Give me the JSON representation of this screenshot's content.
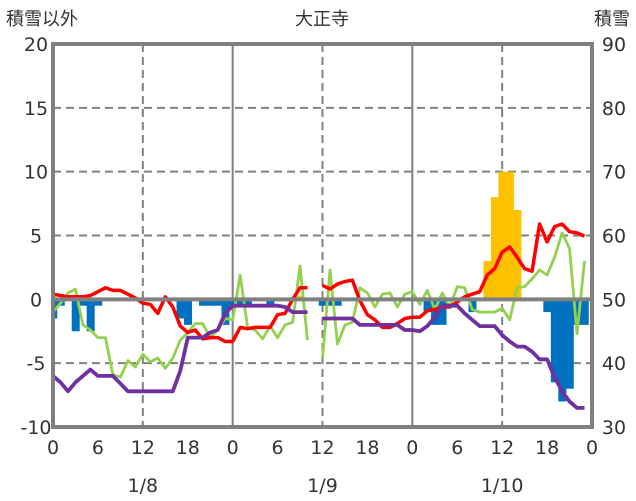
{
  "chart_data": {
    "type": "line",
    "title": "大正寺",
    "ylabel_left": "積雪以外",
    "ylabel_right": "積雪",
    "ylim_left": [
      -10,
      20
    ],
    "ylim_right": [
      30,
      90
    ],
    "yticks_left": [
      "20",
      "15",
      "10",
      "5",
      "0",
      "-5",
      "-10"
    ],
    "yticks_right": [
      "90",
      "80",
      "70",
      "60",
      "50",
      "40",
      "30"
    ],
    "xticks": [
      "0",
      "6",
      "12",
      "18",
      "0",
      "6",
      "12",
      "18",
      "0",
      "6",
      "12",
      "18",
      "0"
    ],
    "date_labels": [
      "1/8",
      "1/9",
      "1/10"
    ],
    "hours": 72,
    "grid": true,
    "colors": {
      "red": "#FF0000",
      "green": "#92D050",
      "purple": "#7030A0",
      "bar_negative": "#0070C0",
      "bar_positive": "#FFC000",
      "axis": "#808080"
    },
    "series": [
      {
        "name": "red",
        "axis": "left",
        "values": [
          0.4,
          0.3,
          0.2,
          0.2,
          0.2,
          0.3,
          0.6,
          0.9,
          0.7,
          0.7,
          0.4,
          0.1,
          -0.3,
          -0.4,
          -1.1,
          0.2,
          -0.6,
          -2.1,
          -2.6,
          -2.4,
          -3.1,
          -3.0,
          -3.0,
          -3.3,
          -3.3,
          -2.2,
          -2.3,
          -2.2,
          -2.2,
          -2.2,
          -1.2,
          -1.1,
          0.0,
          0.9,
          0.9,
          null,
          1.1,
          0.8,
          1.2,
          1.4,
          1.5,
          -0.1,
          -1.2,
          -1.6,
          -2.2,
          -2.2,
          -1.9,
          -1.5,
          -1.4,
          -1.4,
          -0.9,
          -0.8,
          -0.6,
          -0.6,
          -0.2,
          0.2,
          0.4,
          0.6,
          1.9,
          2.4,
          3.7,
          4.1,
          3.3,
          2.4,
          2.2,
          5.9,
          4.5,
          5.7,
          5.9,
          5.3,
          5.2,
          4.95
        ]
      },
      {
        "name": "green",
        "axis": "left",
        "values": [
          -1.0,
          -0.3,
          0.5,
          0.8,
          -2.0,
          -2.4,
          -3.0,
          -3.0,
          -5.9,
          -6.1,
          -4.8,
          -5.3,
          -4.3,
          -4.9,
          -4.6,
          -5.4,
          -4.6,
          -3.2,
          -2.6,
          -1.9,
          -1.9,
          -3.0,
          -2.4,
          -1.5,
          -1.6,
          1.9,
          -2.2,
          -2.4,
          -3.1,
          -2.1,
          -3.0,
          -2.0,
          -1.8,
          2.6,
          -3.2,
          null,
          -4.6,
          2.3,
          -3.5,
          -2.0,
          -1.8,
          0.9,
          0.5,
          -0.6,
          0.4,
          0.5,
          -0.6,
          0.4,
          0.6,
          -0.4,
          0.7,
          -0.8,
          0.5,
          -0.6,
          1.0,
          0.9,
          -0.8,
          -1.0,
          -1.0,
          -1.0,
          -0.7,
          -1.6,
          0.9,
          1.0,
          1.6,
          2.3,
          1.9,
          3.3,
          5.2,
          4.0,
          -2.7,
          3.0
        ]
      },
      {
        "name": "purple",
        "axis": "right",
        "values": [
          38,
          37,
          35.6,
          37,
          38,
          39,
          38,
          38,
          38,
          36.8,
          35.6,
          35.6,
          35.6,
          35.6,
          35.6,
          35.6,
          35.6,
          38.8,
          44,
          44,
          44,
          44.8,
          45.2,
          47.8,
          49,
          49,
          49,
          49,
          49,
          49,
          49,
          48.8,
          48,
          48,
          48,
          null,
          47,
          47,
          47,
          47,
          47,
          46,
          46,
          46,
          46,
          46,
          46,
          45.2,
          45.2,
          45,
          45.8,
          47.2,
          49,
          49,
          49,
          47.8,
          46.8,
          45.8,
          45.8,
          45.8,
          44.4,
          43.4,
          42.6,
          42.6,
          41.8,
          40.6,
          40.6,
          37.8,
          35.6,
          34,
          33,
          33
        ]
      },
      {
        "name": "bars",
        "type": "bar",
        "axis": "left",
        "values": [
          -1.5,
          -0.5,
          0,
          -2.5,
          -0.5,
          -2.5,
          -0.5,
          0,
          0,
          0,
          0,
          0,
          0,
          0,
          0,
          0,
          0,
          -1.5,
          -2.0,
          0,
          -0.5,
          -0.5,
          -0.5,
          -2.0,
          -0.5,
          -0.5,
          -0.5,
          0,
          0,
          -0.5,
          0,
          0,
          0,
          0.3,
          0,
          0,
          -0.5,
          -0.5,
          -0.5,
          0,
          0,
          0,
          0,
          0,
          0,
          0,
          0,
          0,
          0,
          0,
          -1.0,
          -2.0,
          -2.0,
          0,
          0,
          0,
          -1.0,
          0,
          3,
          8,
          10,
          10,
          7,
          0,
          0,
          0,
          -1.0,
          -6.5,
          -8.0,
          -7.0,
          -2.0,
          -2.0
        ]
      }
    ]
  }
}
